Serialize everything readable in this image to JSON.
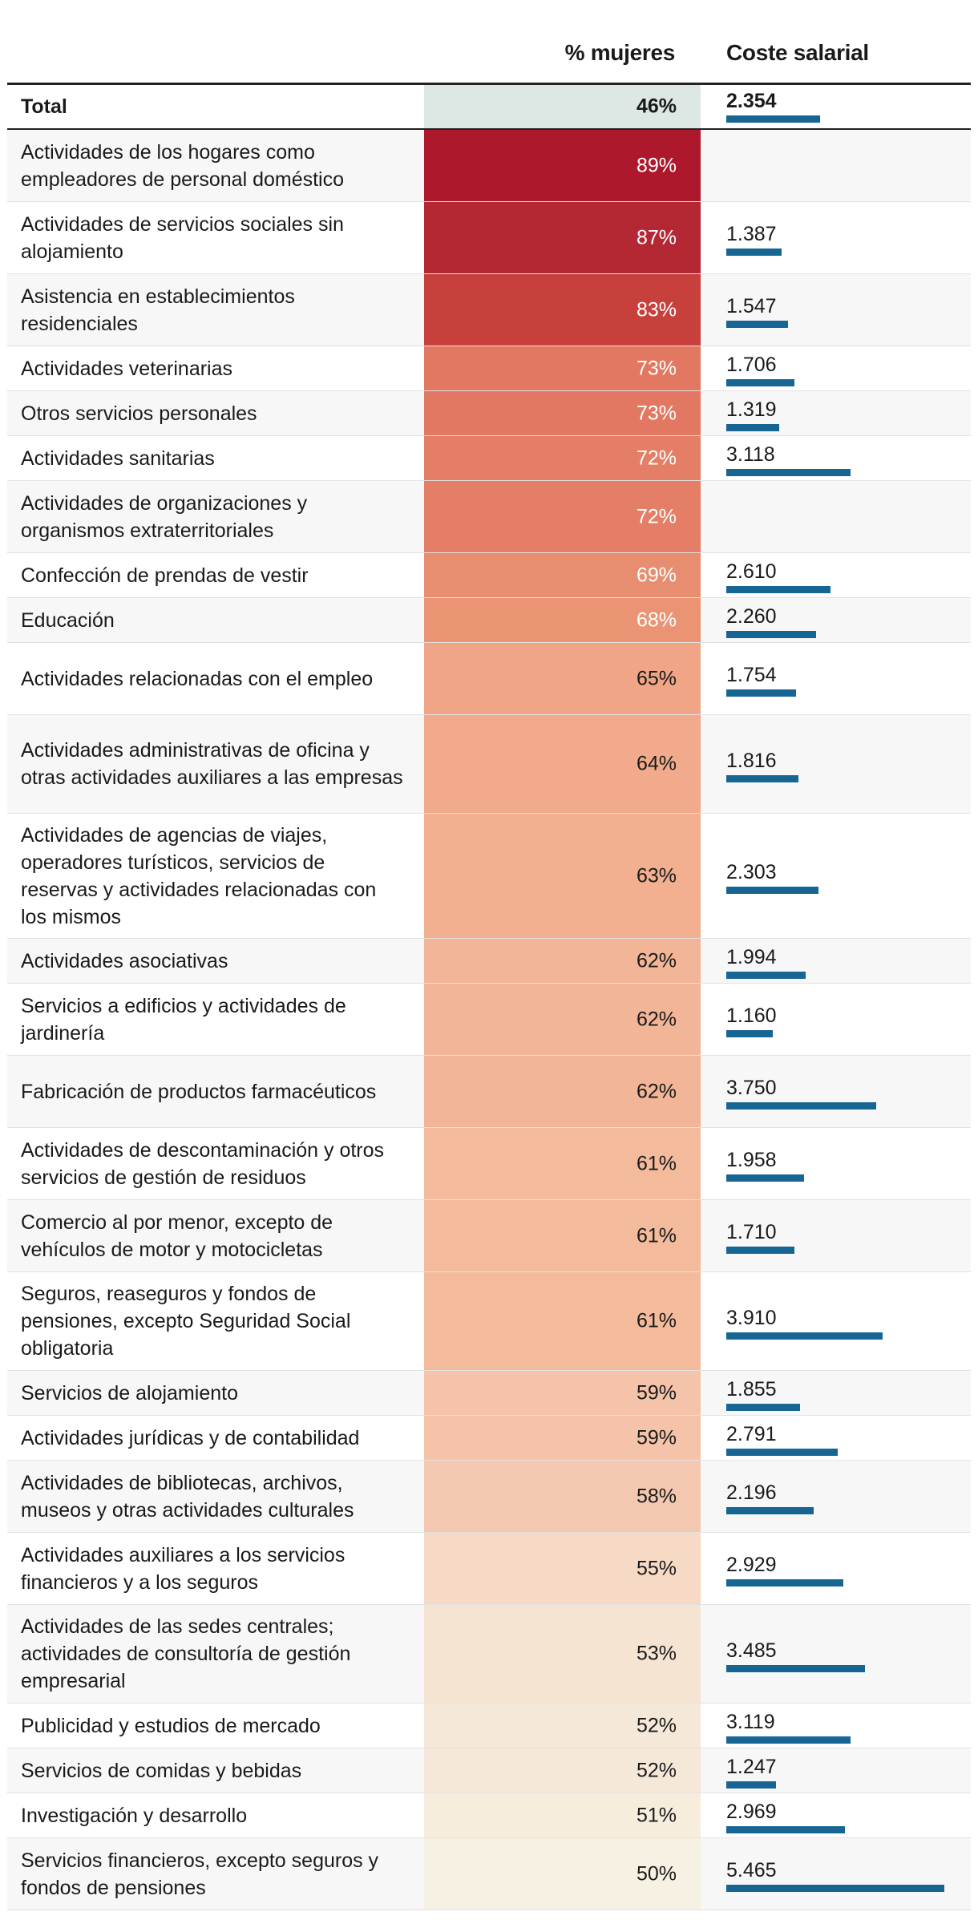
{
  "header": {
    "pct_label": "% mujeres",
    "cost_label": "Coste salarial"
  },
  "colors": {
    "bar": "#176593",
    "total_pct_bg": "#dde7e4"
  },
  "chart_data": {
    "type": "table",
    "columns": [
      "% mujeres",
      "Coste salarial"
    ],
    "cost_max": 5465,
    "rows": [
      {
        "label": "Total",
        "pct": "46%",
        "pct_value": 46,
        "cost": "2.354",
        "cost_value": 2354,
        "total": true
      },
      {
        "label": "Actividades de los hogares como empleadores de personal doméstico",
        "pct": "89%",
        "pct_value": 89,
        "cost": null,
        "cost_value": null
      },
      {
        "label": "Actividades de servicios sociales sin alojamiento",
        "pct": "87%",
        "pct_value": 87,
        "cost": "1.387",
        "cost_value": 1387
      },
      {
        "label": "Asistencia en establecimientos residenciales",
        "pct": "83%",
        "pct_value": 83,
        "cost": "1.547",
        "cost_value": 1547
      },
      {
        "label": "Actividades veterinarias",
        "pct": "73%",
        "pct_value": 73,
        "cost": "1.706",
        "cost_value": 1706
      },
      {
        "label": "Otros servicios personales",
        "pct": "73%",
        "pct_value": 73,
        "cost": "1.319",
        "cost_value": 1319
      },
      {
        "label": "Actividades sanitarias",
        "pct": "72%",
        "pct_value": 72,
        "cost": "3.118",
        "cost_value": 3118
      },
      {
        "label": "Actividades de organizaciones y organismos extraterritoriales",
        "pct": "72%",
        "pct_value": 72,
        "cost": null,
        "cost_value": null
      },
      {
        "label": "Confección de prendas de vestir",
        "pct": "69%",
        "pct_value": 69,
        "cost": "2.610",
        "cost_value": 2610
      },
      {
        "label": "Educación",
        "pct": "68%",
        "pct_value": 68,
        "cost": "2.260",
        "cost_value": 2260
      },
      {
        "label": "Actividades relacionadas con el empleo",
        "pct": "65%",
        "pct_value": 65,
        "cost": "1.754",
        "cost_value": 1754
      },
      {
        "label": "Actividades administrativas de oficina y otras actividades auxiliares a las empresas",
        "pct": "64%",
        "pct_value": 64,
        "cost": "1.816",
        "cost_value": 1816
      },
      {
        "label": "Actividades de agencias de viajes, operadores turísticos, servicios de reservas y actividades relacionadas con los mismos",
        "pct": "63%",
        "pct_value": 63,
        "cost": "2.303",
        "cost_value": 2303
      },
      {
        "label": "Actividades asociativas",
        "pct": "62%",
        "pct_value": 62,
        "cost": "1.994",
        "cost_value": 1994
      },
      {
        "label": "Servicios a edificios y actividades de jardinería",
        "pct": "62%",
        "pct_value": 62,
        "cost": "1.160",
        "cost_value": 1160
      },
      {
        "label": "Fabricación de productos farmacéuticos",
        "pct": "62%",
        "pct_value": 62,
        "cost": "3.750",
        "cost_value": 3750
      },
      {
        "label": "Actividades de descontaminación y otros servicios de gestión de residuos",
        "pct": "61%",
        "pct_value": 61,
        "cost": "1.958",
        "cost_value": 1958
      },
      {
        "label": "Comercio al por menor, excepto de vehículos de motor y motocicletas",
        "pct": "61%",
        "pct_value": 61,
        "cost": "1.710",
        "cost_value": 1710
      },
      {
        "label": "Seguros, reaseguros y fondos de pensiones, excepto Seguridad Social obligatoria",
        "pct": "61%",
        "pct_value": 61,
        "cost": "3.910",
        "cost_value": 3910
      },
      {
        "label": "Servicios de alojamiento",
        "pct": "59%",
        "pct_value": 59,
        "cost": "1.855",
        "cost_value": 1855
      },
      {
        "label": "Actividades jurídicas y de contabilidad",
        "pct": "59%",
        "pct_value": 59,
        "cost": "2.791",
        "cost_value": 2791
      },
      {
        "label": "Actividades de bibliotecas, archivos, museos y otras actividades culturales",
        "pct": "58%",
        "pct_value": 58,
        "cost": "2.196",
        "cost_value": 2196
      },
      {
        "label": "Actividades auxiliares a los servicios financieros y a los seguros",
        "pct": "55%",
        "pct_value": 55,
        "cost": "2.929",
        "cost_value": 2929
      },
      {
        "label": "Actividades de las sedes centrales; actividades de consultoría de gestión empresarial",
        "pct": "53%",
        "pct_value": 53,
        "cost": "3.485",
        "cost_value": 3485
      },
      {
        "label": "Publicidad y estudios de mercado",
        "pct": "52%",
        "pct_value": 52,
        "cost": "3.119",
        "cost_value": 3119
      },
      {
        "label": "Servicios de comidas y bebidas",
        "pct": "52%",
        "pct_value": 52,
        "cost": "1.247",
        "cost_value": 1247
      },
      {
        "label": "Investigación y desarrollo",
        "pct": "51%",
        "pct_value": 51,
        "cost": "2.969",
        "cost_value": 2969
      },
      {
        "label": "Servicios financieros, excepto seguros y fondos de pensiones",
        "pct": "50%",
        "pct_value": 50,
        "cost": "5.465",
        "cost_value": 5465
      }
    ]
  }
}
